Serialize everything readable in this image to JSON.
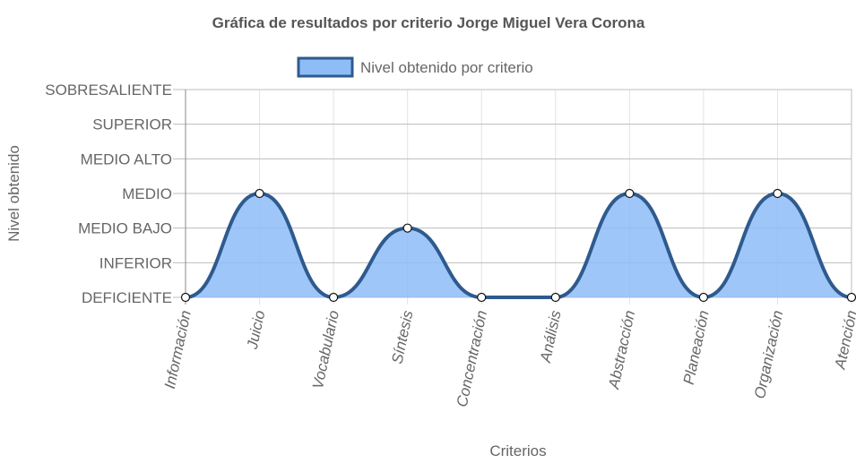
{
  "chart_data": {
    "type": "area",
    "title": "Gráfica de resultados por criterio Jorge Miguel Vera Corona",
    "xlabel": "Criterios",
    "ylabel": "Nivel obtenido",
    "categories": [
      "Información",
      "Juicio",
      "Vocabulario",
      "Síntesis",
      "Concentración",
      "Análisis",
      "Abstracción",
      "Planeación",
      "Organización",
      "Atención"
    ],
    "y_levels": [
      "DEFICIENTE",
      "INFERIOR",
      "MEDIO BAJO",
      "MEDIO",
      "MEDIO ALTO",
      "SUPERIOR",
      "SOBRESALIENTE"
    ],
    "ylim": [
      0,
      6
    ],
    "series": [
      {
        "name": "Nivel obtenido por criterio",
        "values": [
          0,
          3,
          0,
          2,
          0,
          0,
          3,
          0,
          3,
          0
        ]
      }
    ],
    "legend_position": "top",
    "grid": true,
    "colors": {
      "fill": "#8ebcf7",
      "line": "#2e5a8d",
      "grid": "#e3e3e3",
      "axis": "#8a8a8a",
      "text": "#666666",
      "title": "#555555"
    }
  }
}
